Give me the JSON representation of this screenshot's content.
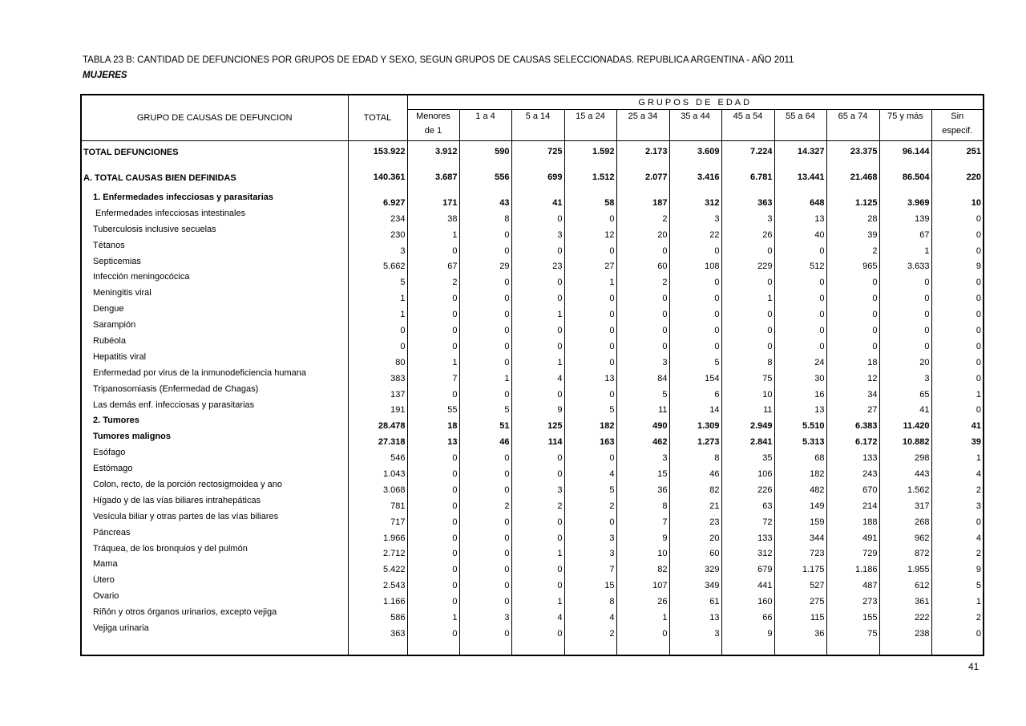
{
  "title": "TABLA 23 B: CANTIDAD DE DEFUNCIONES POR GRUPOS DE EDAD Y SEXO,  SEGUN GRUPOS DE CAUSAS SELECCIONADAS. REPUBLICA ARGENTINA - AÑO 2011",
  "subtitle": "MUJERES",
  "page_number": "41",
  "header": {
    "cause": "GRUPO DE CAUSAS DE DEFUNCION",
    "total": "TOTAL",
    "age_group": "GRUPOS DE EDAD",
    "ages": [
      [
        "Menores",
        "de 1"
      ],
      [
        "1 a 4",
        ""
      ],
      [
        "5 a 14",
        ""
      ],
      [
        "15 a 24",
        ""
      ],
      [
        "25 a 34",
        ""
      ],
      [
        "35 a 44",
        ""
      ],
      [
        "45 a 54",
        ""
      ],
      [
        "55 a 64",
        ""
      ],
      [
        "65 a 74",
        ""
      ],
      [
        "75 y más",
        ""
      ],
      [
        "Sin",
        "especif."
      ]
    ]
  },
  "rows": [
    {
      "label": "TOTAL DEFUNCIONES",
      "bold": true,
      "indent": 0,
      "values": [
        "153.922",
        "3.912",
        "590",
        "725",
        "1.592",
        "2.173",
        "3.609",
        "7.224",
        "14.327",
        "23.375",
        "96.144",
        "251"
      ]
    },
    {
      "label": "A. TOTAL CAUSAS BIEN DEFINIDAS",
      "bold": true,
      "indent": 0,
      "values": [
        "140.361",
        "3.687",
        "556",
        "699",
        "1.512",
        "2.077",
        "3.416",
        "6.781",
        "13.441",
        "21.468",
        "86.504",
        "220"
      ]
    },
    {
      "label": "1. Enfermedades infecciosas y parasitarias",
      "bold": true,
      "indent": 1,
      "values": [
        "6.927",
        "171",
        "43",
        "41",
        "58",
        "187",
        "312",
        "363",
        "648",
        "1.125",
        "3.969",
        "10"
      ]
    },
    {
      "label": "Enfermedades infecciosas intestinales",
      "bold": false,
      "indent": 2,
      "values": [
        "234",
        "38",
        "8",
        "0",
        "0",
        "2",
        "3",
        "3",
        "13",
        "28",
        "139",
        "0"
      ]
    },
    {
      "label": "Tuberculosis inclusive secuelas",
      "bold": false,
      "indent": 1,
      "values": [
        "230",
        "1",
        "0",
        "3",
        "12",
        "20",
        "22",
        "26",
        "40",
        "39",
        "67",
        "0"
      ]
    },
    {
      "label": "Tétanos",
      "bold": false,
      "indent": 1,
      "values": [
        "3",
        "0",
        "0",
        "0",
        "0",
        "0",
        "0",
        "0",
        "0",
        "2",
        "1",
        "0"
      ]
    },
    {
      "label": "Septicemias",
      "bold": false,
      "indent": 1,
      "values": [
        "5.662",
        "67",
        "29",
        "23",
        "27",
        "60",
        "108",
        "229",
        "512",
        "965",
        "3.633",
        "9"
      ]
    },
    {
      "label": "Infección meningocócica",
      "bold": false,
      "indent": 1,
      "values": [
        "5",
        "2",
        "0",
        "0",
        "1",
        "2",
        "0",
        "0",
        "0",
        "0",
        "0",
        "0"
      ]
    },
    {
      "label": "Meningitis viral",
      "bold": false,
      "indent": 1,
      "values": [
        "1",
        "0",
        "0",
        "0",
        "0",
        "0",
        "0",
        "1",
        "0",
        "0",
        "0",
        "0"
      ]
    },
    {
      "label": "Dengue",
      "bold": false,
      "indent": 1,
      "values": [
        "1",
        "0",
        "0",
        "1",
        "0",
        "0",
        "0",
        "0",
        "0",
        "0",
        "0",
        "0"
      ]
    },
    {
      "label": "Sarampión",
      "bold": false,
      "indent": 1,
      "values": [
        "0",
        "0",
        "0",
        "0",
        "0",
        "0",
        "0",
        "0",
        "0",
        "0",
        "0",
        "0"
      ]
    },
    {
      "label": "Rubéola",
      "bold": false,
      "indent": 1,
      "values": [
        "0",
        "0",
        "0",
        "0",
        "0",
        "0",
        "0",
        "0",
        "0",
        "0",
        "0",
        "0"
      ]
    },
    {
      "label": "Hepatitis viral",
      "bold": false,
      "indent": 1,
      "values": [
        "80",
        "1",
        "0",
        "1",
        "0",
        "3",
        "5",
        "8",
        "24",
        "18",
        "20",
        "0"
      ]
    },
    {
      "label": "Enfermedad por virus de la inmunodeficiencia humana",
      "bold": false,
      "indent": 1,
      "values": [
        "383",
        "7",
        "1",
        "4",
        "13",
        "84",
        "154",
        "75",
        "30",
        "12",
        "3",
        "0"
      ]
    },
    {
      "label": "Tripanosomiasis (Enfermedad de Chagas)",
      "bold": false,
      "indent": 1,
      "values": [
        "137",
        "0",
        "0",
        "0",
        "0",
        "5",
        "6",
        "10",
        "16",
        "34",
        "65",
        "1"
      ]
    },
    {
      "label": "Las demás enf. infecciosas y parasitarias",
      "bold": false,
      "indent": 1,
      "values": [
        "191",
        "55",
        "5",
        "9",
        "5",
        "11",
        "14",
        "11",
        "13",
        "27",
        "41",
        "0"
      ]
    },
    {
      "label": "2. Tumores",
      "bold": true,
      "indent": 1,
      "values": [
        "28.478",
        "18",
        "51",
        "125",
        "182",
        "490",
        "1.309",
        "2.949",
        "5.510",
        "6.383",
        "11.420",
        "41"
      ]
    },
    {
      "label": "Tumores malignos",
      "bold": true,
      "indent": 1,
      "values": [
        "27.318",
        "13",
        "46",
        "114",
        "163",
        "462",
        "1.273",
        "2.841",
        "5.313",
        "6.172",
        "10.882",
        "39"
      ]
    },
    {
      "label": "Esófago",
      "bold": false,
      "indent": 1,
      "values": [
        "546",
        "0",
        "0",
        "0",
        "0",
        "3",
        "8",
        "35",
        "68",
        "133",
        "298",
        "1"
      ]
    },
    {
      "label": "Estómago",
      "bold": false,
      "indent": 1,
      "values": [
        "1.043",
        "0",
        "0",
        "0",
        "4",
        "15",
        "46",
        "106",
        "182",
        "243",
        "443",
        "4"
      ]
    },
    {
      "label": "Colon, recto,  de la porción rectosigmoidea y ano",
      "bold": false,
      "indent": 1,
      "values": [
        "3.068",
        "0",
        "0",
        "3",
        "5",
        "36",
        "82",
        "226",
        "482",
        "670",
        "1.562",
        "2"
      ]
    },
    {
      "label": "Hígado y de las vías biliares intrahepáticas",
      "bold": false,
      "indent": 1,
      "values": [
        "781",
        "0",
        "2",
        "2",
        "2",
        "8",
        "21",
        "63",
        "149",
        "214",
        "317",
        "3"
      ]
    },
    {
      "label": "Vesícula biliar y otras partes de las vías biliares",
      "bold": false,
      "indent": 1,
      "values": [
        "717",
        "0",
        "0",
        "0",
        "0",
        "7",
        "23",
        "72",
        "159",
        "188",
        "268",
        "0"
      ]
    },
    {
      "label": "Páncreas",
      "bold": false,
      "indent": 1,
      "values": [
        "1.966",
        "0",
        "0",
        "0",
        "3",
        "9",
        "20",
        "133",
        "344",
        "491",
        "962",
        "4"
      ]
    },
    {
      "label": "Tráquea, de los bronquios y del pulmón",
      "bold": false,
      "indent": 1,
      "values": [
        "2.712",
        "0",
        "0",
        "1",
        "3",
        "10",
        "60",
        "312",
        "723",
        "729",
        "872",
        "2"
      ]
    },
    {
      "label": "Mama",
      "bold": false,
      "indent": 1,
      "values": [
        "5.422",
        "0",
        "0",
        "0",
        "7",
        "82",
        "329",
        "679",
        "1.175",
        "1.186",
        "1.955",
        "9"
      ]
    },
    {
      "label": "Útero",
      "bold": false,
      "indent": 1,
      "values": [
        "2.543",
        "0",
        "0",
        "0",
        "15",
        "107",
        "349",
        "441",
        "527",
        "487",
        "612",
        "5"
      ]
    },
    {
      "label": "Ovario",
      "bold": false,
      "indent": 1,
      "values": [
        "1.166",
        "0",
        "0",
        "1",
        "8",
        "26",
        "61",
        "160",
        "275",
        "273",
        "361",
        "1"
      ]
    },
    {
      "label": "Riñón y otros órganos urinarios, excepto vejiga",
      "bold": false,
      "indent": 1,
      "values": [
        "586",
        "1",
        "3",
        "4",
        "4",
        "1",
        "13",
        "66",
        "115",
        "155",
        "222",
        "2"
      ]
    },
    {
      "label": "Vejiga urinaria",
      "bold": false,
      "indent": 1,
      "values": [
        "363",
        "0",
        "0",
        "0",
        "2",
        "0",
        "3",
        "9",
        "36",
        "75",
        "238",
        "0"
      ]
    }
  ]
}
